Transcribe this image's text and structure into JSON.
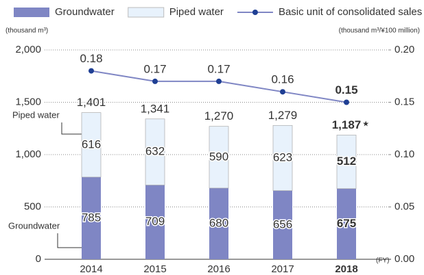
{
  "chart_data": {
    "type": "bar",
    "categories": [
      "2014",
      "2015",
      "2016",
      "2017",
      "2018"
    ],
    "highlight_category": 4,
    "series": [
      {
        "name": "Groundwater",
        "color": "#7f86c4",
        "values": [
          785,
          709,
          680,
          656,
          675
        ]
      },
      {
        "name": "Piped water",
        "color": "#e8f2fc",
        "values": [
          616,
          632,
          590,
          623,
          512
        ]
      },
      {
        "name": "Basic unit of  consolidated sales",
        "color": "#7f86c4",
        "marker_color": "#1f3f94",
        "axis": "y2",
        "values": [
          0.18,
          0.17,
          0.17,
          0.16,
          0.15
        ]
      }
    ],
    "totals": {
      "values": [
        1401,
        1341,
        1270,
        1279,
        1187
      ],
      "value_labels": [
        "1,401",
        "1,341",
        "1,270",
        "1,279",
        "1,187"
      ]
    },
    "total_mark": "★",
    "y_label": "(thousand m³)",
    "y2_label": "(thousand m³/¥100 million)",
    "x_unit": "(FY)",
    "annotations": [
      "Piped water",
      "Groundwater"
    ],
    "ylim": [
      0,
      2000
    ],
    "yticks": [
      0,
      500,
      {
        "value": 1000,
        "label": "1,000"
      },
      {
        "value": 1500,
        "label": "1,500"
      },
      {
        "value": 2000,
        "label": "2,000"
      }
    ],
    "y2lim": [
      0,
      0.2
    ],
    "y2ticks": [
      {
        "value": 0,
        "label": "0.00"
      },
      0.05,
      {
        "value": 0.1,
        "label": "0.10"
      },
      0.15,
      {
        "value": 0.2,
        "label": "0.20"
      }
    ],
    "grid": true
  }
}
